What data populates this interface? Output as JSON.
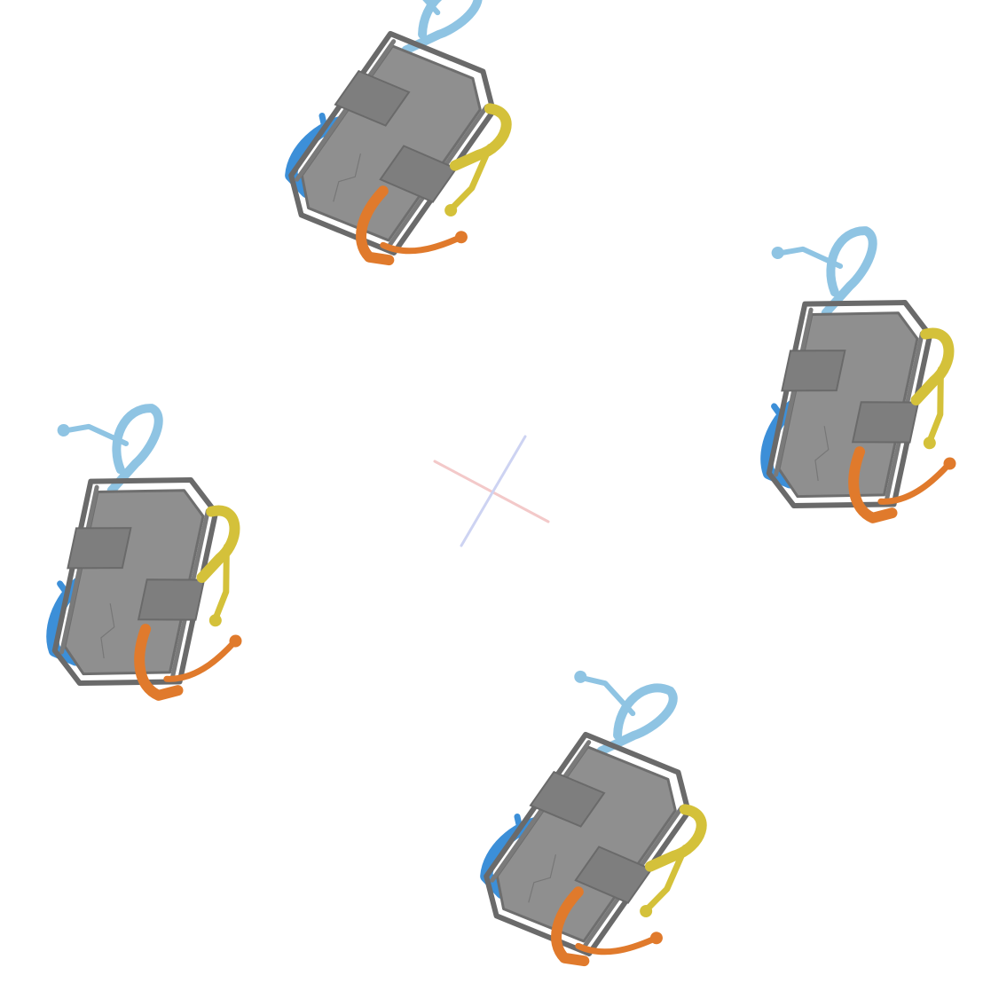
{
  "scene": {
    "background": "#ffffff",
    "palette": {
      "frame": "#8f8f8f",
      "frame_dark": "#6e6e6e",
      "light_blue": "#8fc4e3",
      "blue": "#3c8fd8",
      "yellow": "#d4c13a",
      "orange": "#e07a2c",
      "center_marker_red": "#f3c9c9",
      "center_marker_blue": "#cdd3f2"
    },
    "center_marker": {
      "shape": "cross"
    },
    "models": [
      {
        "name": "model-top",
        "view": "rotated"
      },
      {
        "name": "model-right",
        "view": "upright"
      },
      {
        "name": "model-left",
        "view": "upright"
      },
      {
        "name": "model-bottom",
        "view": "rotated"
      }
    ]
  }
}
